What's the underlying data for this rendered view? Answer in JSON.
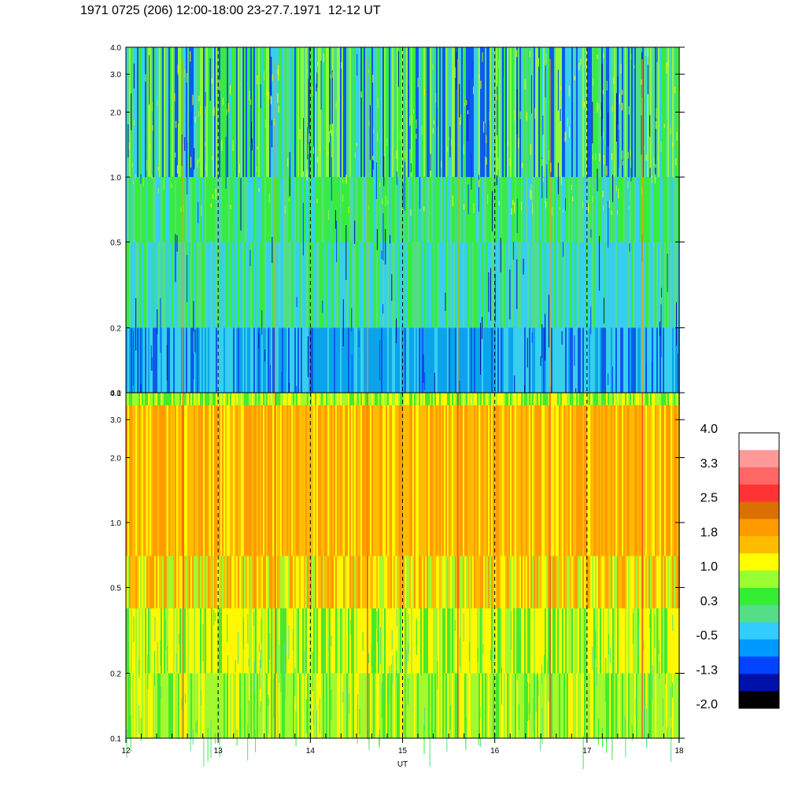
{
  "title": "1971 0725 (206) 12:00-18:00 23-27.7.1971  12-12 UT",
  "chart_data": [
    {
      "type": "heatmap",
      "panel": "top",
      "xlabel": "",
      "ylabel": "",
      "xlim": [
        12,
        18
      ],
      "ylim": [
        0.1,
        4.0
      ],
      "yscale": "log",
      "y_ticks": [
        0.1,
        0.2,
        0.5,
        1.0,
        2.0,
        3.0,
        4.0
      ],
      "y_tick_labels": [
        "0.1",
        "0.2",
        "0.5",
        "1.0",
        "2.0",
        "3.0",
        "4.0"
      ],
      "reference_lines_x": [
        13,
        14,
        15,
        16,
        17
      ],
      "dominant_levels": "mostly 0.3 to -1.3 (green to blue); lowest values near 0.1-0.2 between 14 and 16"
    },
    {
      "type": "heatmap",
      "panel": "bottom",
      "xlabel": "UT",
      "ylabel": "",
      "xlim": [
        12,
        18
      ],
      "ylim": [
        0.1,
        4.0
      ],
      "yscale": "log",
      "x_ticks": [
        12,
        13,
        14,
        15,
        16,
        17,
        18
      ],
      "x_tick_labels": [
        "12",
        "13",
        "14",
        "15",
        "16",
        "17",
        "18"
      ],
      "y_ticks": [
        0.1,
        0.2,
        0.5,
        1.0,
        2.0,
        3.0,
        4.0
      ],
      "y_tick_labels": [
        "0.1",
        "0.2",
        "0.5",
        "1.0",
        "2.0",
        "3.0",
        "4.0"
      ],
      "reference_lines_x": [
        13,
        14,
        15,
        16,
        17
      ],
      "dominant_levels": "mostly 1.0 to 1.8 (yellow to orange) above 0.5; 0.3 to 1.0 (green to yellow) below 0.5"
    }
  ],
  "colorbar": {
    "labels": [
      "4.0",
      "3.3",
      "2.5",
      "1.8",
      "1.0",
      "0.3",
      "-0.5",
      "-1.3",
      "-2.0"
    ],
    "colors": [
      "#ffffff",
      "#ff9999",
      "#ff6666",
      "#ff3333",
      "#d97000",
      "#ff9900",
      "#ffbb00",
      "#ffff00",
      "#99ff33",
      "#33ee33",
      "#55dd88",
      "#33ccff",
      "#0099ff",
      "#0044ff",
      "#0011aa",
      "#000000"
    ]
  },
  "palette": {
    "black": "#000000",
    "navy": "#0011aa",
    "blue": "#0044ff",
    "mid_blue": "#0099ff",
    "cyan": "#33ccff",
    "teal": "#55dd88",
    "green": "#33ee33",
    "lime": "#99ff33",
    "yellow": "#ffff00",
    "gold": "#ffbb00",
    "orange": "#ff9900",
    "dark_orange": "#d97000",
    "red": "#ff3333"
  }
}
